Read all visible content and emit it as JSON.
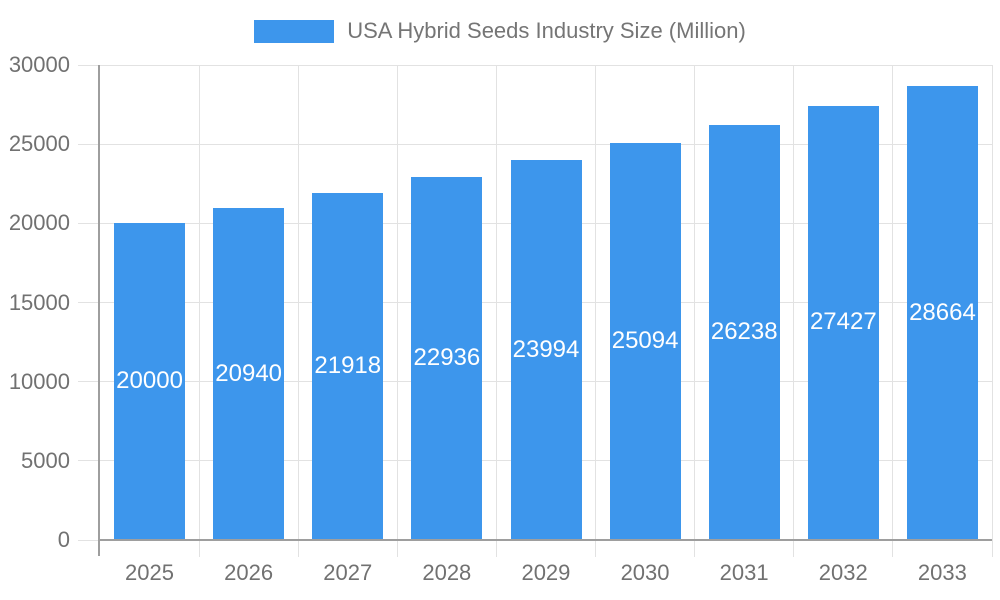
{
  "legend": {
    "label": "USA Hybrid Seeds Industry Size (Million)"
  },
  "colors": {
    "bar": "#3D96EC",
    "bar_label": "#FFFFFF",
    "axis_text": "#717171",
    "grid": "#E2E2E2",
    "axis_line": "#9E9E9E",
    "background": "#FFFFFF"
  },
  "chart_data": {
    "type": "bar",
    "title": "USA Hybrid Seeds Industry Size (Million)",
    "series_name": "USA Hybrid Seeds Industry Size (Million)",
    "categories": [
      "2025",
      "2026",
      "2027",
      "2028",
      "2029",
      "2030",
      "2031",
      "2032",
      "2033"
    ],
    "values": [
      20000,
      20940,
      21918,
      22936,
      23994,
      25094,
      26238,
      27427,
      28664
    ],
    "value_labels": [
      "20000",
      "20940",
      "21918",
      "22936",
      "23994",
      "25094",
      "26238",
      "27427",
      "28664"
    ],
    "value_labels_position": "inside-center",
    "xlabel": "",
    "ylabel": "",
    "ylim": [
      0,
      30000
    ],
    "yticks": [
      0,
      5000,
      10000,
      15000,
      20000,
      25000,
      30000
    ],
    "grid": "both",
    "legend_position": "top-center"
  }
}
